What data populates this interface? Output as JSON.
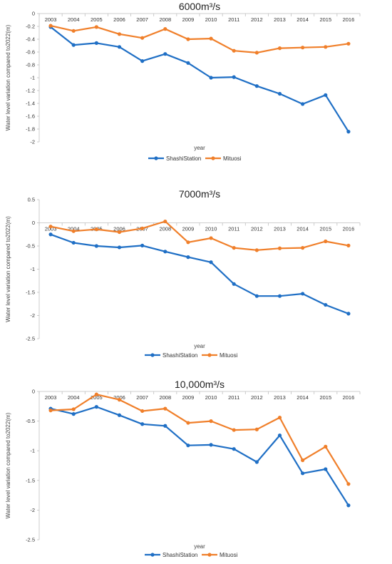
{
  "chart_data": [
    {
      "type": "line",
      "title": "6000m³/s",
      "xlabel": "year",
      "ylabel": "Water level variation compared to2022(m)",
      "x": [
        "2003",
        "2004",
        "2005",
        "2006",
        "2007",
        "2008",
        "2009",
        "2010",
        "2011",
        "2012",
        "2013",
        "2014",
        "2015",
        "2016"
      ],
      "ylim": [
        -2,
        0
      ],
      "yticks": [
        0,
        -0.2,
        -0.4,
        -0.6,
        -0.8,
        -1,
        -1.2,
        -1.4,
        -1.6,
        -1.8,
        -2
      ],
      "ytick_labels": [
        "0",
        "-0.2",
        "-0.4",
        "-0.6",
        "-0.8",
        "-1",
        "-1.2",
        "-1.4",
        "-1.6",
        "-1.8",
        "-2"
      ],
      "grid": false,
      "legend_position": "bottom",
      "series": [
        {
          "name": "ShashiStation",
          "color": "#1f6fc5",
          "values": [
            -0.21,
            -0.49,
            -0.46,
            -0.52,
            -0.74,
            -0.63,
            -0.77,
            -1.0,
            -0.99,
            -1.13,
            -1.25,
            -1.41,
            -1.27,
            -1.84
          ]
        },
        {
          "name": "Mituosi",
          "color": "#f07f2a",
          "values": [
            -0.19,
            -0.27,
            -0.21,
            -0.32,
            -0.38,
            -0.24,
            -0.4,
            -0.39,
            -0.58,
            -0.61,
            -0.54,
            -0.53,
            -0.52,
            -0.47
          ]
        }
      ]
    },
    {
      "type": "line",
      "title": "7000m³/s",
      "xlabel": "year",
      "ylabel": "Water level variation compared to2022(m)",
      "x": [
        "2003",
        "2004",
        "2005",
        "2006",
        "2007",
        "2008",
        "2009",
        "2010",
        "2011",
        "2012",
        "2013",
        "2014",
        "2015",
        "2016"
      ],
      "ylim": [
        -2.5,
        0.5
      ],
      "yticks": [
        0.5,
        0,
        -0.5,
        -1,
        -1.5,
        -2,
        -2.5
      ],
      "ytick_labels": [
        "0.5",
        "0",
        "-0.5",
        "-1",
        "-1.5",
        "-2",
        "-2.5"
      ],
      "grid": false,
      "legend_position": "bottom",
      "series": [
        {
          "name": "ShashiStation",
          "color": "#1f6fc5",
          "values": [
            -0.25,
            -0.43,
            -0.5,
            -0.53,
            -0.49,
            -0.62,
            -0.74,
            -0.85,
            -1.32,
            -1.58,
            -1.58,
            -1.53,
            -1.77,
            -1.96
          ]
        },
        {
          "name": "Mituosi",
          "color": "#f07f2a",
          "values": [
            -0.08,
            -0.18,
            -0.14,
            -0.2,
            -0.12,
            0.03,
            -0.42,
            -0.33,
            -0.54,
            -0.59,
            -0.55,
            -0.54,
            -0.4,
            -0.49
          ]
        }
      ]
    },
    {
      "type": "line",
      "title": "10,000m³/s",
      "xlabel": "year",
      "ylabel": "Water level variation compared to2022(m)",
      "x": [
        "2003",
        "2004",
        "2005",
        "2006",
        "2007",
        "2008",
        "2009",
        "2010",
        "2011",
        "2012",
        "2013",
        "2014",
        "2015",
        "2016"
      ],
      "ylim": [
        -2.5,
        0
      ],
      "yticks": [
        0,
        -0.5,
        -1,
        -1.5,
        -2,
        -2.5
      ],
      "ytick_labels": [
        "0",
        "-0.5",
        "-1",
        "-1.5",
        "-2",
        "-2.5"
      ],
      "grid": false,
      "legend_position": "bottom",
      "series": [
        {
          "name": "ShashiStation",
          "color": "#1f6fc5",
          "values": [
            -0.29,
            -0.38,
            -0.26,
            -0.4,
            -0.55,
            -0.58,
            -0.91,
            -0.9,
            -0.97,
            -1.19,
            -0.74,
            -1.38,
            -1.31,
            -1.92
          ]
        },
        {
          "name": "Mituosi",
          "color": "#f07f2a",
          "values": [
            -0.32,
            -0.3,
            -0.05,
            -0.14,
            -0.33,
            -0.29,
            -0.53,
            -0.5,
            -0.65,
            -0.64,
            -0.44,
            -1.16,
            -0.93,
            -1.56
          ]
        }
      ]
    }
  ]
}
